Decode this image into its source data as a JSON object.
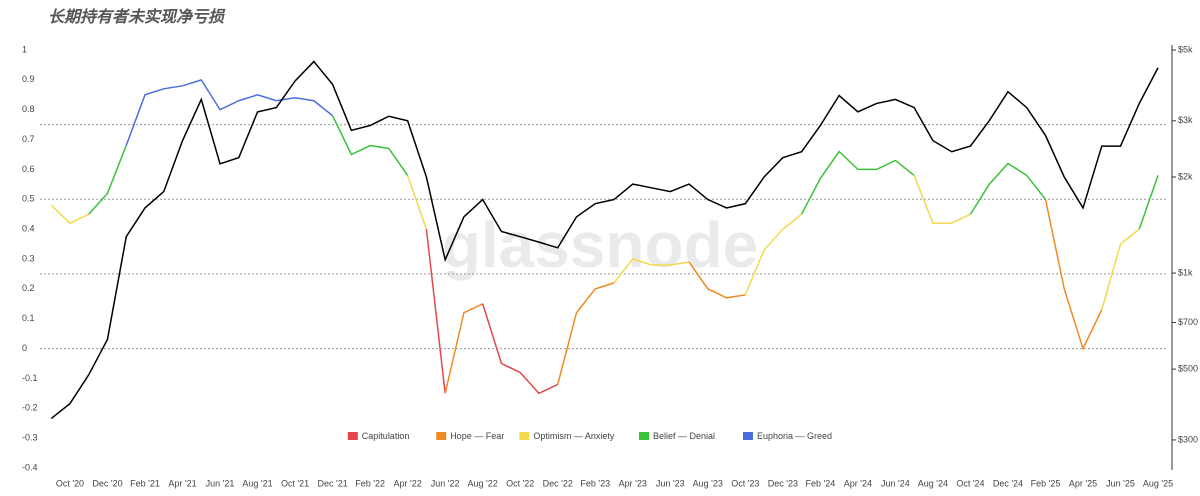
{
  "chart_data": {
    "type": "line",
    "title": "长期持有者未实现净亏损",
    "watermark": "glassnode",
    "categories": [
      null,
      "Oct '20",
      null,
      "Dec '20",
      null,
      "Feb '21",
      null,
      "Apr '21",
      null,
      "Jun '21",
      null,
      "Aug '21",
      null,
      "Oct '21",
      null,
      "Dec '21",
      null,
      "Feb '22",
      null,
      "Apr '22",
      null,
      "Jun '22",
      null,
      "Aug '22",
      null,
      "Oct '22",
      null,
      "Dec '22",
      null,
      "Feb '23",
      null,
      "Apr '23",
      null,
      "Jun '23",
      null,
      "Aug '23",
      null,
      "Oct '23",
      null,
      "Dec '23",
      null,
      "Feb '24",
      null,
      "Apr '24",
      null,
      "Jun '24",
      null,
      "Aug '24",
      null,
      "Oct '24",
      null,
      "Dec '24",
      null,
      "Feb '25",
      null,
      "Apr '25",
      null,
      "Jun '25",
      null,
      "Aug '25"
    ],
    "series": [
      {
        "values": [
          0.48,
          0.42,
          0.45,
          0.52,
          0.68,
          0.85,
          0.87,
          0.88,
          0.9,
          0.8,
          0.83,
          0.85,
          0.83,
          0.84,
          0.83,
          0.78,
          0.65,
          0.68,
          0.67,
          0.58,
          0.4,
          -0.15,
          0.12,
          0.15,
          -0.05,
          -0.08,
          -0.15,
          -0.12,
          0.12,
          0.2,
          0.22,
          0.3,
          0.28,
          0.28,
          0.29,
          0.2,
          0.17,
          0.18,
          0.33,
          0.4,
          0.45,
          0.57,
          0.66,
          0.6,
          0.6,
          0.63,
          0.58,
          0.42,
          0.42,
          0.45,
          0.55,
          0.62,
          0.58,
          0.5,
          0.2,
          0.0,
          0.13,
          0.35,
          0.4,
          0.58
        ]
      },
      {
        "color": "#000000",
        "axis": "y2",
        "values": [
          350,
          390,
          480,
          620,
          1300,
          1600,
          1800,
          2600,
          3500,
          2200,
          2300,
          3200,
          3300,
          4000,
          4600,
          3900,
          2800,
          2900,
          3100,
          3000,
          2000,
          1100,
          1500,
          1700,
          1350,
          1300,
          1250,
          1200,
          1500,
          1650,
          1700,
          1900,
          1850,
          1800,
          1900,
          1700,
          1600,
          1650,
          2000,
          2300,
          2400,
          2900,
          3600,
          3200,
          3400,
          3500,
          3300,
          2600,
          2400,
          2500,
          3000,
          3700,
          3300,
          2700,
          2000,
          1600,
          2500,
          2500,
          3400,
          4400
        ]
      }
    ],
    "thresholds": [
      0,
      0.25,
      0.5,
      0.75
    ],
    "zones": [
      {
        "name": "Capitulation",
        "color": "#e3474a"
      },
      {
        "name": "Hope — Fear",
        "color": "#f08a24"
      },
      {
        "name": "Optimism — Anxiety",
        "color": "#f2d94e"
      },
      {
        "name": "Belief — Denial",
        "color": "#3cc13b"
      },
      {
        "name": "Euphoria — Greed",
        "color": "#4a6fdc"
      }
    ],
    "ylim": [
      -0.4,
      1
    ],
    "yticks": [
      1,
      0.9,
      0.8,
      0.7,
      0.6,
      0.5,
      0.4,
      0.3,
      0.2,
      0.1,
      0,
      -0.1,
      -0.2,
      -0.3,
      -0.4
    ],
    "y2lim": [
      245,
      5000
    ],
    "y2scale": "log",
    "y2ticks": [
      {
        "value": 5000,
        "label": "$5k"
      },
      {
        "value": 3000,
        "label": "$3k"
      },
      {
        "value": 2000,
        "label": "$2k"
      },
      {
        "value": 1000,
        "label": "$1k"
      },
      {
        "value": 700,
        "label": "$700"
      },
      {
        "value": 500,
        "label": "$500"
      },
      {
        "value": 300,
        "label": "$300"
      }
    ]
  }
}
